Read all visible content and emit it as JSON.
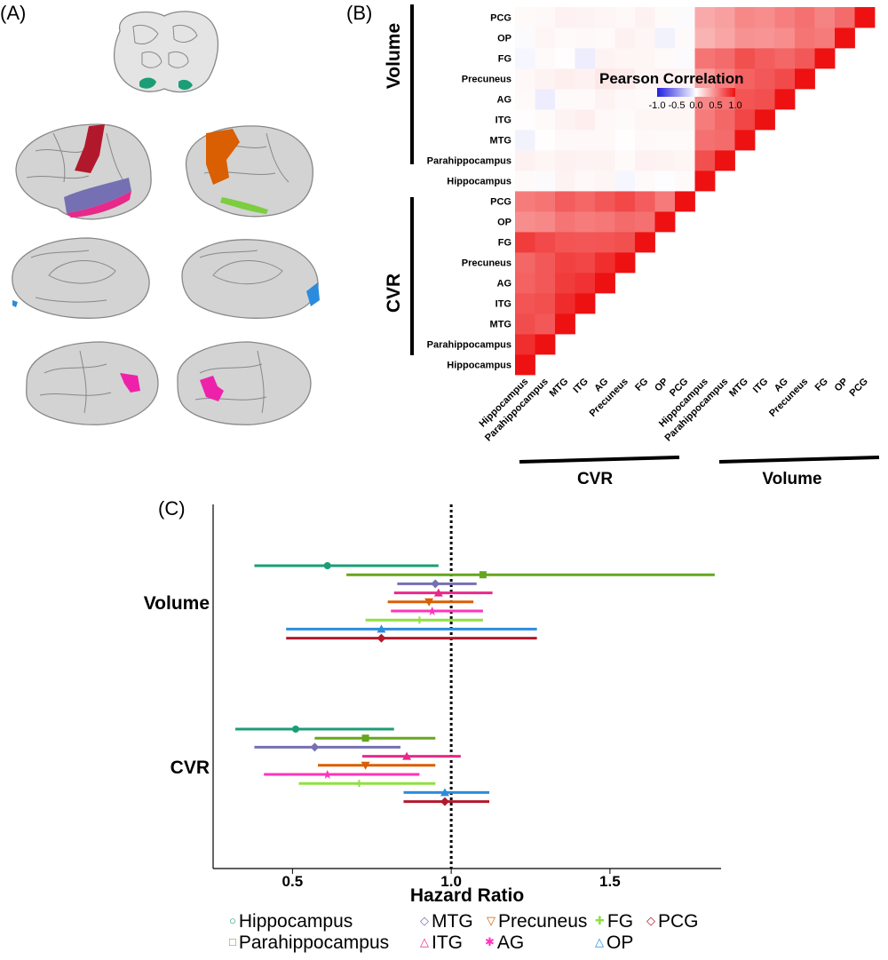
{
  "panels": {
    "a": "(A)",
    "b": "(B)",
    "c": "(C)"
  },
  "brain_regions": [
    {
      "name": "Hippocampus",
      "color": "#1b9e77"
    },
    {
      "name": "PCG",
      "color": "#b2182b"
    },
    {
      "name": "MTG",
      "color": "#7570b3"
    },
    {
      "name": "ITG",
      "color": "#e7298a"
    },
    {
      "name": "FG",
      "color": "#7ccd3f"
    },
    {
      "name": "Precuneus",
      "color": "#d95f02"
    },
    {
      "name": "OP",
      "color": "#2b8cdd"
    },
    {
      "name": "AG",
      "color": "#ee22aa"
    }
  ],
  "chart_data": [
    {
      "type": "heatmap",
      "title": "Pearson Correlation",
      "row_labels": [
        "PCG",
        "OP",
        "FG",
        "Precuneus",
        "AG",
        "ITG",
        "MTG",
        "Parahippocampus",
        "Hippocampus",
        "PCG",
        "OP",
        "FG",
        "Precuneus",
        "AG",
        "ITG",
        "MTG",
        "Parahippocampus",
        "Hippocampus"
      ],
      "col_labels": [
        "Hippocampus",
        "Parahippocampus",
        "MTG",
        "ITG",
        "AG",
        "Precuneus",
        "FG",
        "OP",
        "PCG",
        "Hippocampus",
        "Parahippocampus",
        "MTG",
        "ITG",
        "AG",
        "Precuneus",
        "FG",
        "OP",
        "PCG"
      ],
      "row_groups": [
        "Volume",
        "CVR"
      ],
      "col_groups": [
        "CVR",
        "Volume"
      ],
      "colorbar": {
        "ticks": [
          "-1.0",
          "-0.5",
          "0.0",
          "0.5",
          "1.0"
        ],
        "range": [
          -1,
          1
        ],
        "low": "#2020e0",
        "mid": "#ffffff",
        "high": "#ee1111"
      },
      "matrix_lower_triangle_only": true,
      "cvr_cvr": [
        [
          1.0
        ],
        [
          0.88,
          1.0
        ],
        [
          0.75,
          0.7,
          1.0
        ],
        [
          0.72,
          0.74,
          0.89,
          1.0
        ],
        [
          0.66,
          0.7,
          0.82,
          0.86,
          1.0
        ],
        [
          0.64,
          0.7,
          0.8,
          0.78,
          0.88,
          1.0
        ],
        [
          0.82,
          0.76,
          0.72,
          0.71,
          0.72,
          0.74,
          1.0
        ],
        [
          0.48,
          0.5,
          0.58,
          0.55,
          0.57,
          0.62,
          0.6,
          1.0
        ],
        [
          0.55,
          0.58,
          0.68,
          0.64,
          0.7,
          0.77,
          0.68,
          0.56,
          1.0
        ]
      ],
      "vol_cvr": [
        [
          0.02,
          -0.02,
          0.05,
          0.03,
          0.04,
          -0.04,
          0.02,
          -0.01,
          0.02
        ],
        [
          0.06,
          0.04,
          0.06,
          0.05,
          0.05,
          0.02,
          0.06,
          0.05,
          0.04
        ],
        [
          -0.06,
          0.01,
          0.03,
          0.03,
          0.03,
          0.01,
          0.03,
          0.02,
          0.02
        ],
        [
          0.01,
          0.02,
          0.05,
          0.07,
          0.03,
          0.02,
          0.04,
          0.04,
          0.04
        ],
        [
          0.02,
          -0.08,
          0.02,
          0.02,
          0.05,
          0.03,
          0.02,
          0.02,
          0.04
        ],
        [
          0.03,
          0.05,
          0.07,
          0.06,
          0.1,
          0.09,
          0.04,
          0.06,
          0.05
        ],
        [
          -0.04,
          0.02,
          0.01,
          -0.08,
          0.05,
          0.04,
          0.04,
          0.02,
          -0.02
        ],
        [
          -0.02,
          0.04,
          0.02,
          0.03,
          0.02,
          0.06,
          0.04,
          -0.06,
          0.02
        ],
        [
          0.02,
          0.03,
          0.06,
          0.05,
          0.04,
          0.03,
          0.06,
          0.02,
          -0.02
        ]
      ],
      "vol_vol": [
        [
          1.0
        ],
        [
          0.74,
          1.0
        ],
        [
          0.6,
          0.62,
          1.0
        ],
        [
          0.55,
          0.64,
          0.78,
          1.0
        ],
        [
          0.5,
          0.58,
          0.72,
          0.74,
          1.0
        ],
        [
          0.42,
          0.54,
          0.66,
          0.7,
          0.76,
          1.0
        ],
        [
          0.58,
          0.62,
          0.74,
          0.68,
          0.64,
          0.7,
          1.0
        ],
        [
          0.32,
          0.38,
          0.46,
          0.45,
          0.48,
          0.58,
          0.56,
          1.0
        ],
        [
          0.36,
          0.4,
          0.5,
          0.48,
          0.54,
          0.6,
          0.52,
          0.62,
          1.0
        ]
      ]
    },
    {
      "type": "scatter",
      "subtype": "forest",
      "xlabel": "Hazard Ratio",
      "x_ticks": [
        "0.5",
        "1.0",
        "1.5"
      ],
      "xlim": [
        0.25,
        1.85
      ],
      "reference_line": 1.0,
      "groups": [
        "Volume",
        "CVR"
      ],
      "series": [
        {
          "name": "Hippocampus",
          "color": "#1b9e77",
          "marker": "circle",
          "Volume": [
            0.61,
            0.38,
            0.96
          ],
          "CVR": [
            0.51,
            0.32,
            0.82
          ]
        },
        {
          "name": "Parahippocampus",
          "color": "#66a61e",
          "marker": "square",
          "Volume": [
            1.1,
            0.67,
            1.83
          ],
          "CVR": [
            0.73,
            0.57,
            0.95
          ]
        },
        {
          "name": "MTG",
          "color": "#7570b3",
          "marker": "diamond",
          "Volume": [
            0.95,
            0.83,
            1.08
          ],
          "CVR": [
            0.57,
            0.38,
            0.84
          ]
        },
        {
          "name": "ITG",
          "color": "#e7298a",
          "marker": "triangle-up",
          "Volume": [
            0.96,
            0.82,
            1.13
          ],
          "CVR": [
            0.86,
            0.72,
            1.03
          ]
        },
        {
          "name": "Precuneus",
          "color": "#d95f02",
          "marker": "triangle-down",
          "Volume": [
            0.93,
            0.8,
            1.07
          ],
          "CVR": [
            0.73,
            0.58,
            0.95
          ]
        },
        {
          "name": "AG",
          "color": "#ff33bb",
          "marker": "star",
          "Volume": [
            0.94,
            0.81,
            1.1
          ],
          "CVR": [
            0.61,
            0.41,
            0.9
          ]
        },
        {
          "name": "FG",
          "color": "#8fe040",
          "marker": "plus",
          "Volume": [
            0.9,
            0.73,
            1.1
          ],
          "CVR": [
            0.71,
            0.52,
            0.95
          ]
        },
        {
          "name": "OP",
          "color": "#2b8cdd",
          "marker": "triangle-up",
          "Volume": [
            0.78,
            0.48,
            1.27
          ],
          "CVR": [
            0.98,
            0.85,
            1.12
          ]
        },
        {
          "name": "PCG",
          "color": "#b2182b",
          "marker": "diamond",
          "Volume": [
            0.78,
            0.48,
            1.27
          ],
          "CVR": [
            0.98,
            0.85,
            1.12
          ]
        }
      ]
    }
  ]
}
